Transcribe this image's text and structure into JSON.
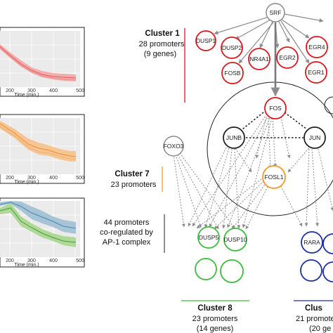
{
  "colors": {
    "red": "#d7191c",
    "orange": "#f39a2e",
    "green": "#3dbb3d",
    "blue": "#1c2fa8",
    "gray_node": "#8a8a8a",
    "panel_bg": "#ebebeb",
    "grid": "#ffffff",
    "arrow": "#8c8c8c"
  },
  "panels": [
    {
      "name": "red-panel",
      "x_ticks": [
        "200",
        "300",
        "400",
        "500"
      ],
      "x_title": "Time (min.)",
      "series": [
        {
          "color": "#e8585a",
          "band_color": "#f2a6a4"
        }
      ]
    },
    {
      "name": "orange-panel",
      "x_ticks": [
        "200",
        "300",
        "400",
        "500"
      ],
      "x_title": "Time (min.)",
      "series": [
        {
          "color": "#f08b2c",
          "band_color": "#f7c38f"
        }
      ]
    },
    {
      "name": "blue-green-panel",
      "x_ticks": [
        "200",
        "300",
        "400",
        "500"
      ],
      "x_title": "Time (min.)",
      "series": [
        {
          "color": "#4a87ad",
          "band_color": "#9fc0d4"
        },
        {
          "color": "#3f9e3f",
          "band_color": "#a8d68e"
        }
      ]
    }
  ],
  "clusters": {
    "c1": {
      "title": "Cluster 1",
      "line1": "28 promoters",
      "line2": "(9 genes)"
    },
    "c7": {
      "title": "Cluster 7",
      "line1": "23 promoters"
    },
    "ap1": {
      "line1": "44 promoters",
      "line2": "co-regulated by",
      "line3": "AP-1 complex"
    },
    "c8": {
      "title": "Cluster 8",
      "line1": "23 promoters",
      "line2": "(14 genes)"
    },
    "c_right": {
      "title": "Clus",
      "line1": "21 promote",
      "line2": "(20 ge"
    }
  },
  "nodes": {
    "srf": "SRF",
    "dusp1": "DUSP1",
    "dusp2": "DUSP2",
    "nr4a1": "NR4A1",
    "egr2": "EGR2",
    "egr4": "EGR4",
    "fosb": "FOSB",
    "egr1": "EGR1",
    "fos": "FOS",
    "junb": "JUNB",
    "jun": "JUN",
    "fosl1": "FOSL1",
    "foxo3": "FOXO3",
    "dusp5": "DUSP5",
    "dusp10": "DUSP10",
    "rara": "RARA"
  }
}
